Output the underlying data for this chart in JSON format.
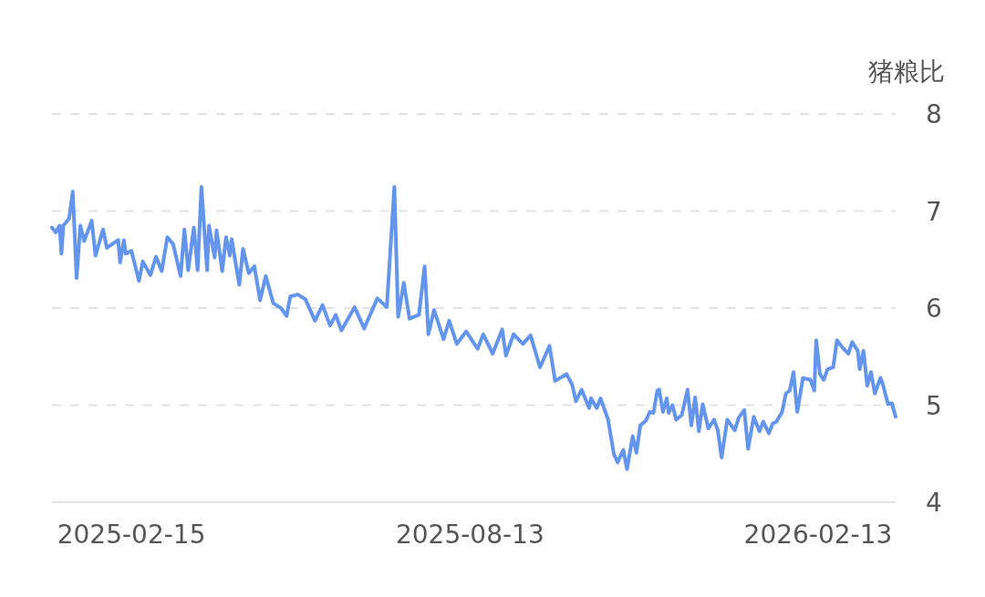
{
  "chart_data": {
    "type": "line",
    "ylabel": "猪粮比",
    "x": [
      "2025-01-04",
      "2025-01-06",
      "2025-01-08",
      "2025-01-09",
      "2025-01-10",
      "2025-01-13",
      "2025-01-15",
      "2025-01-17",
      "2025-01-19",
      "2025-01-21",
      "2025-01-25",
      "2025-01-27",
      "2025-01-31",
      "2025-02-02",
      "2025-02-08",
      "2025-02-09",
      "2025-02-11",
      "2025-02-12",
      "2025-02-15",
      "2025-02-19",
      "2025-02-21",
      "2025-02-25",
      "2025-02-28",
      "2025-03-03",
      "2025-03-06",
      "2025-03-09",
      "2025-03-13",
      "2025-03-15",
      "2025-03-17",
      "2025-03-20",
      "2025-03-22",
      "2025-03-24",
      "2025-03-27",
      "2025-03-28",
      "2025-03-31",
      "2025-04-01",
      "2025-04-04",
      "2025-04-06",
      "2025-04-08",
      "2025-04-09",
      "2025-04-13",
      "2025-04-15",
      "2025-04-18",
      "2025-04-21",
      "2025-04-24",
      "2025-04-27",
      "2025-05-01",
      "2025-05-05",
      "2025-05-08",
      "2025-05-10",
      "2025-05-14",
      "2025-05-18",
      "2025-05-23",
      "2025-05-27",
      "2025-05-31",
      "2025-06-03",
      "2025-06-06",
      "2025-06-13",
      "2025-06-18",
      "2025-06-25",
      "2025-06-30",
      "2025-07-04",
      "2025-07-06",
      "2025-07-09",
      "2025-07-12",
      "2025-07-17",
      "2025-07-20",
      "2025-07-22",
      "2025-07-25",
      "2025-07-30",
      "2025-08-02",
      "2025-08-06",
      "2025-08-11",
      "2025-08-17",
      "2025-08-20",
      "2025-08-25",
      "2025-08-30",
      "2025-09-01",
      "2025-09-05",
      "2025-09-10",
      "2025-09-14",
      "2025-09-19",
      "2025-09-24",
      "2025-09-27",
      "2025-10-03",
      "2025-10-06",
      "2025-10-08",
      "2025-10-11",
      "2025-10-15",
      "2025-10-16",
      "2025-10-19",
      "2025-10-21",
      "2025-10-25",
      "2025-10-28",
      "2025-10-30",
      "2025-11-02",
      "2025-11-04",
      "2025-11-07",
      "2025-11-09",
      "2025-11-11",
      "2025-11-14",
      "2025-11-16",
      "2025-11-18",
      "2025-11-20",
      "2025-11-21",
      "2025-11-23",
      "2025-11-25",
      "2025-11-26",
      "2025-11-28",
      "2025-11-30",
      "2025-12-03",
      "2025-12-06",
      "2025-12-08",
      "2025-12-10",
      "2025-12-12",
      "2025-12-14",
      "2025-12-17",
      "2025-12-20",
      "2025-12-22",
      "2025-12-24",
      "2025-12-27",
      "2025-12-31",
      "2026-01-02",
      "2026-01-05",
      "2026-01-07",
      "2026-01-10",
      "2026-01-13",
      "2026-01-15",
      "2026-01-18",
      "2026-01-20",
      "2026-01-22",
      "2026-01-25",
      "2026-01-27",
      "2026-01-29",
      "2026-01-31",
      "2026-02-02",
      "2026-02-05",
      "2026-02-09",
      "2026-02-11",
      "2026-02-12",
      "2026-02-14",
      "2026-02-16",
      "2026-02-18",
      "2026-02-21",
      "2026-02-23",
      "2026-02-26",
      "2026-03-01",
      "2026-03-03",
      "2026-03-06",
      "2026-03-07",
      "2026-03-09",
      "2026-03-11",
      "2026-03-13",
      "2026-03-15",
      "2026-03-18",
      "2026-03-19",
      "2026-03-22",
      "2026-03-24",
      "2026-03-26"
    ],
    "values": [
      6.83,
      6.78,
      6.85,
      6.56,
      6.85,
      6.92,
      7.2,
      6.31,
      6.85,
      6.69,
      6.9,
      6.54,
      6.81,
      6.62,
      6.7,
      6.47,
      6.7,
      6.56,
      6.59,
      6.28,
      6.48,
      6.34,
      6.53,
      6.38,
      6.73,
      6.66,
      6.33,
      6.81,
      6.39,
      6.83,
      6.39,
      7.25,
      6.39,
      6.85,
      6.52,
      6.8,
      6.38,
      6.73,
      6.54,
      6.71,
      6.24,
      6.61,
      6.36,
      6.43,
      6.08,
      6.33,
      6.05,
      6.0,
      5.92,
      6.12,
      6.14,
      6.09,
      5.87,
      6.03,
      5.82,
      5.93,
      5.77,
      6.01,
      5.79,
      6.1,
      6.01,
      7.25,
      5.91,
      6.26,
      5.89,
      5.93,
      6.43,
      5.73,
      5.98,
      5.68,
      5.87,
      5.63,
      5.76,
      5.58,
      5.73,
      5.53,
      5.78,
      5.51,
      5.73,
      5.63,
      5.72,
      5.39,
      5.61,
      5.25,
      5.32,
      5.21,
      5.04,
      5.16,
      4.97,
      5.07,
      4.97,
      5.07,
      4.85,
      4.5,
      4.41,
      4.54,
      4.34,
      4.68,
      4.51,
      4.79,
      4.84,
      4.93,
      4.92,
      5.15,
      5.16,
      4.93,
      5.07,
      4.92,
      5.0,
      4.85,
      4.9,
      5.16,
      4.79,
      5.08,
      4.73,
      5.01,
      4.76,
      4.85,
      4.74,
      4.46,
      4.85,
      4.74,
      4.87,
      4.95,
      4.55,
      4.88,
      4.73,
      4.83,
      4.71,
      4.81,
      4.83,
      4.93,
      5.12,
      5.15,
      5.34,
      4.93,
      5.28,
      5.26,
      5.15,
      5.67,
      5.32,
      5.26,
      5.37,
      5.39,
      5.67,
      5.59,
      5.53,
      5.65,
      5.56,
      5.37,
      5.56,
      5.2,
      5.34,
      5.12,
      5.28,
      5.23,
      5.01,
      5.02,
      4.88
    ],
    "color": "#6495ed",
    "xlim": [
      "2025-01-04",
      "2026-03-26"
    ],
    "xticks": [
      "2025-02-15",
      "2025-08-13",
      "2026-02-13"
    ],
    "ylim": [
      4,
      8
    ],
    "yticks": [
      4,
      5,
      6,
      7,
      8
    ],
    "grid": "y"
  }
}
